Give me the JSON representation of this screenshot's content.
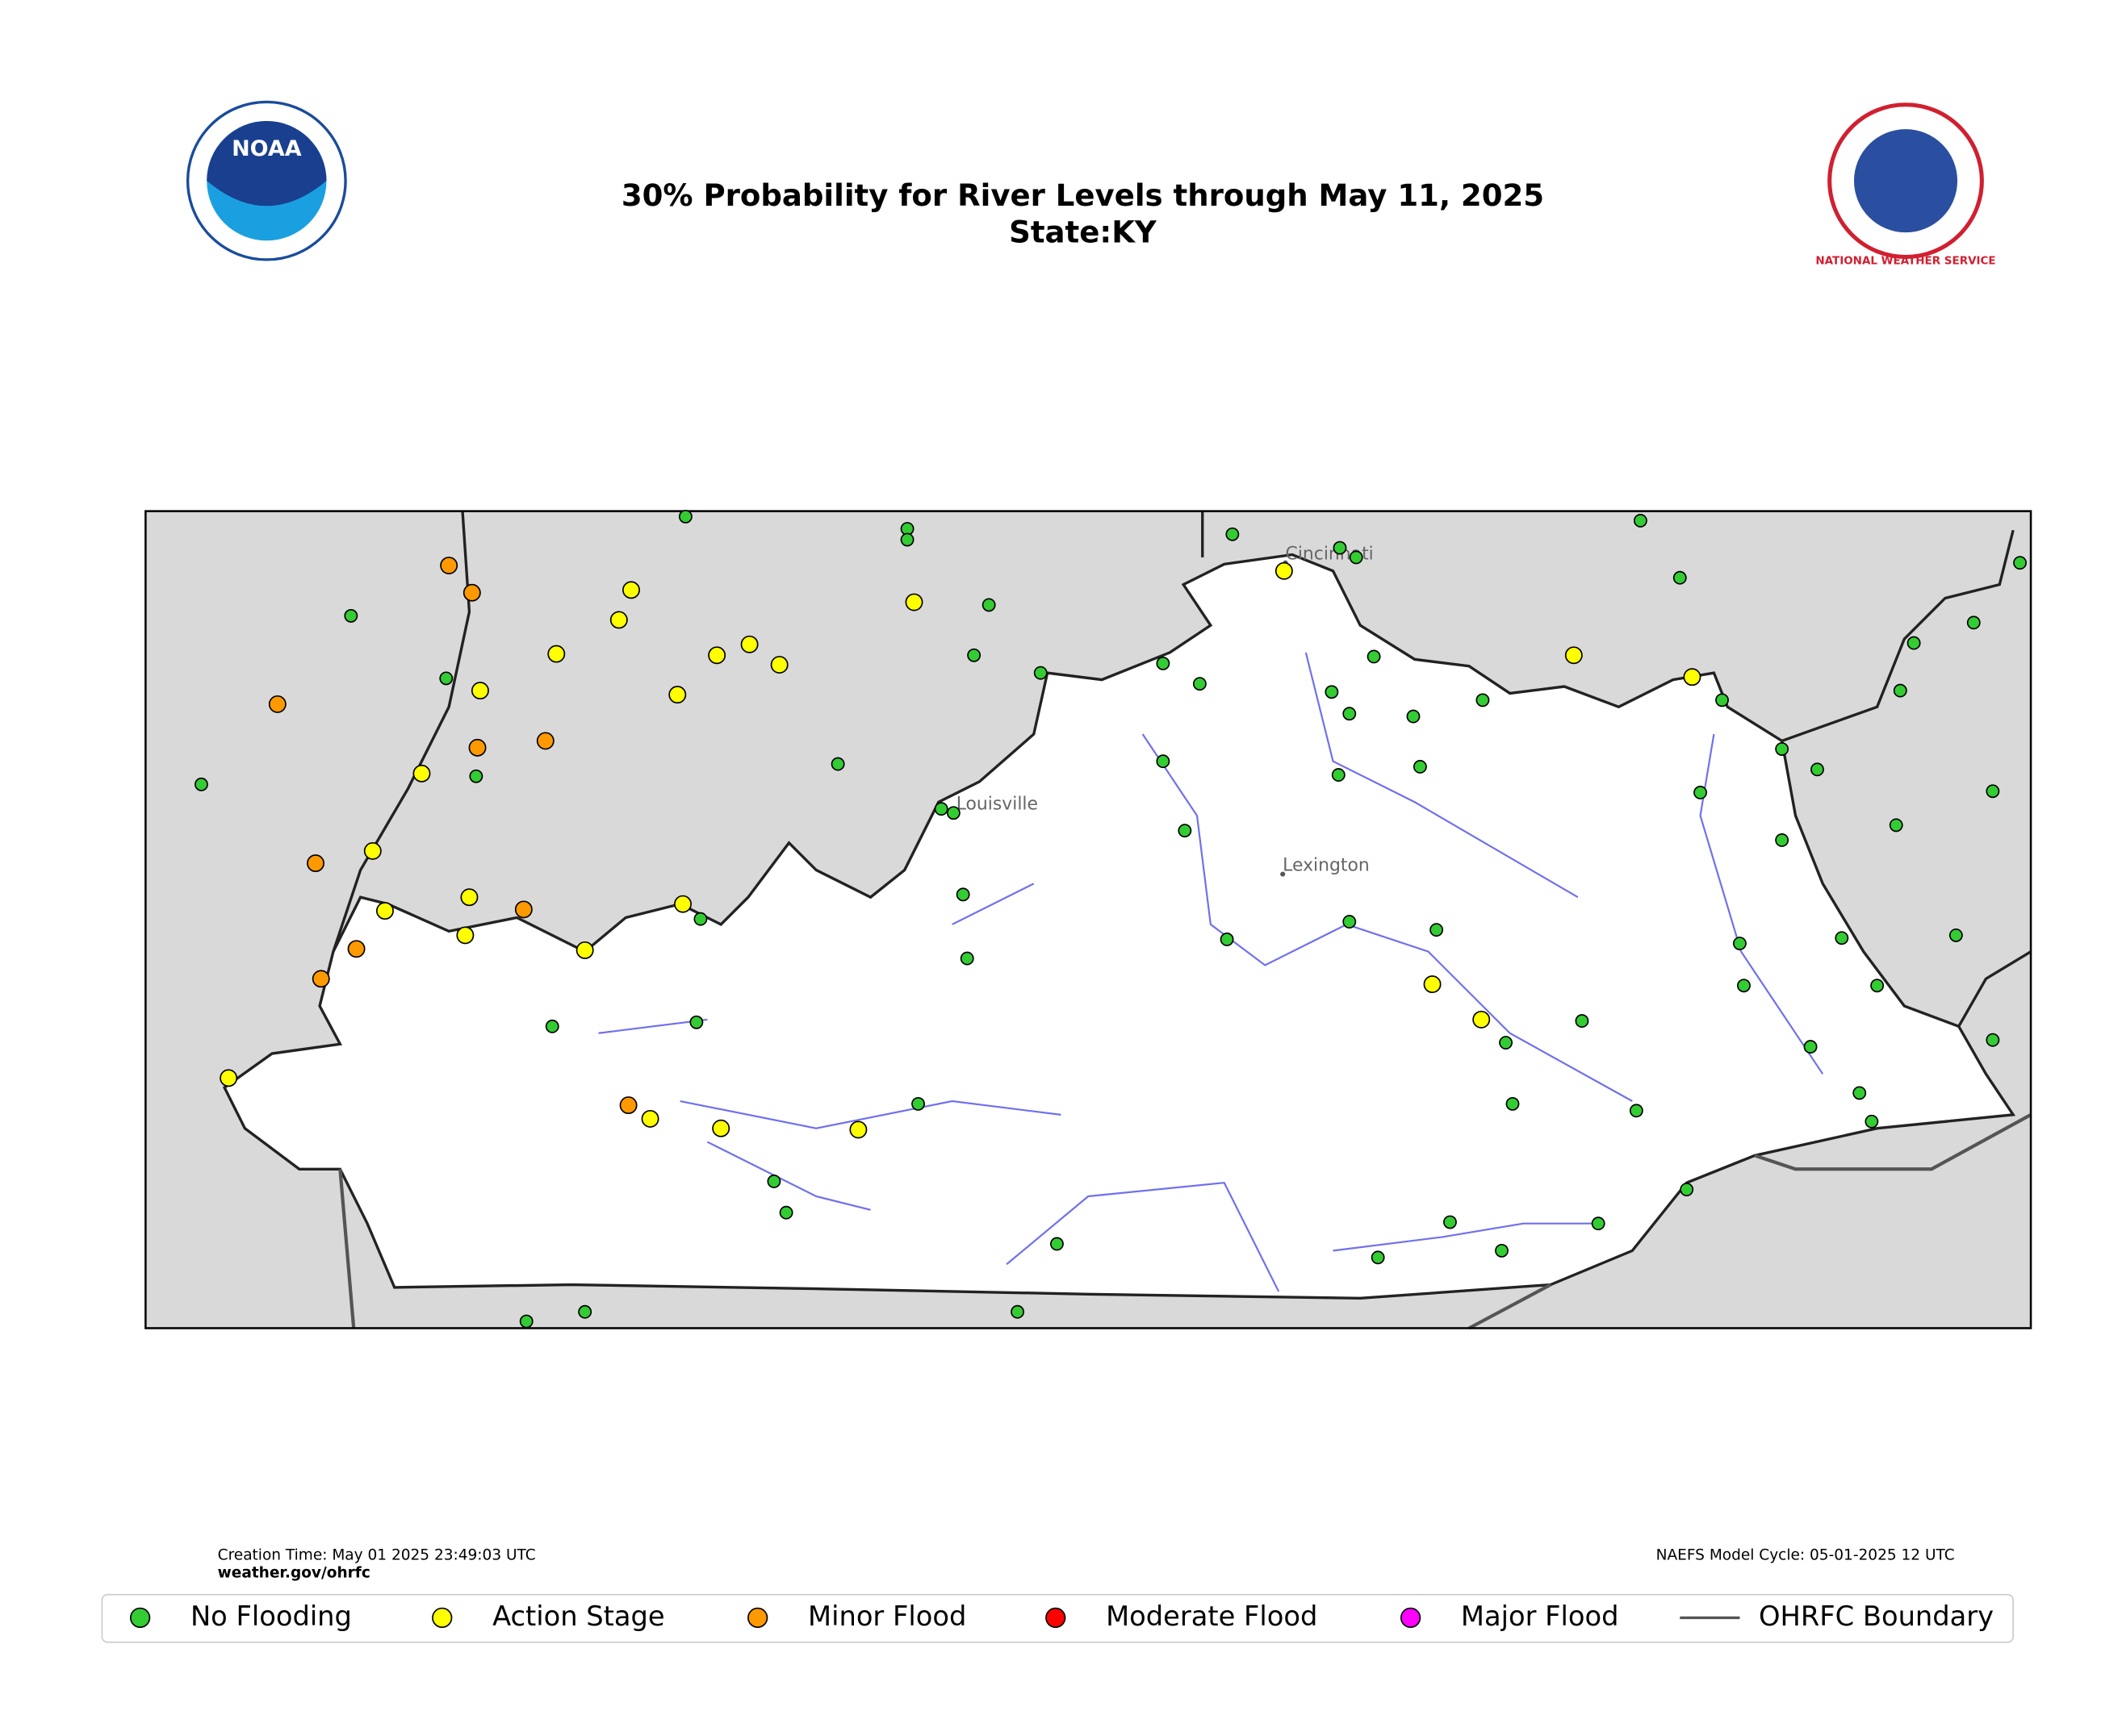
{
  "header": {
    "title": "30% Probability for River Levels through May 11, 2025",
    "subtitle": "State:KY"
  },
  "logos": {
    "noaa": "NOAA",
    "nws": "NATIONAL WEATHER SERVICE"
  },
  "map": {
    "cities": [
      "Cincinnati",
      "Louisville",
      "Lexington"
    ]
  },
  "footer": {
    "creation_time": "Creation Time: May 01 2025 23:49:03 UTC",
    "source": "weather.gov/ohrfc",
    "model_cycle": "NAEFS Model Cycle: 05-01-2025 12 UTC"
  },
  "legend": [
    {
      "label": "No Flooding",
      "color": "#33cc33"
    },
    {
      "label": "Action Stage",
      "color": "#ffff00"
    },
    {
      "label": "Minor Flood",
      "color": "#ff9900"
    },
    {
      "label": "Moderate Flood",
      "color": "#ff0000"
    },
    {
      "label": "Major Flood",
      "color": "#ff00ff"
    },
    {
      "label": "OHRFC Boundary",
      "color": "#555555"
    }
  ]
}
